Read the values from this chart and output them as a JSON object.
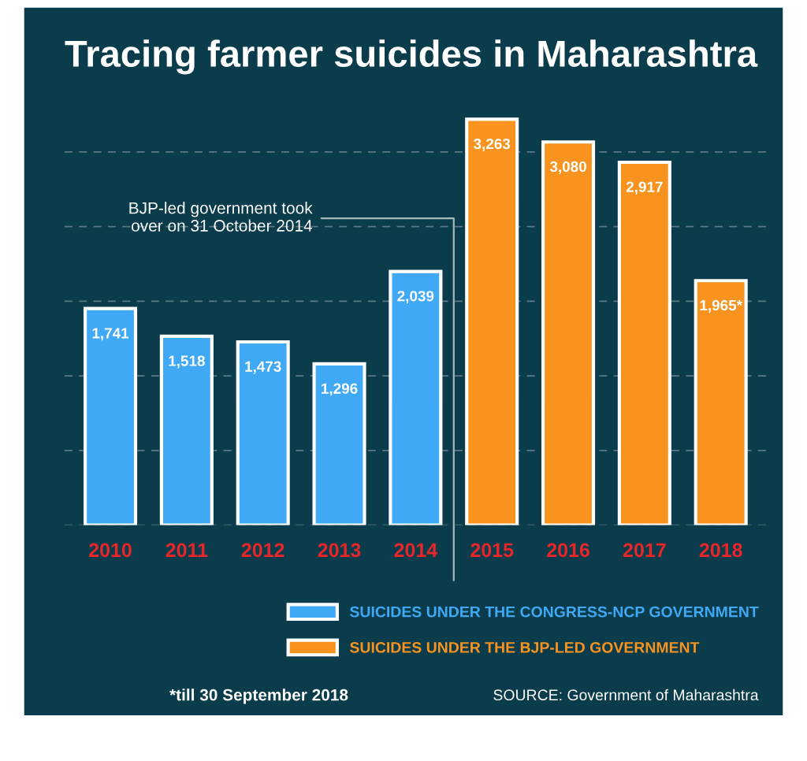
{
  "chart_data": {
    "type": "bar",
    "title": "Tracing farmer suicides in Maharashtra",
    "categories": [
      "2010",
      "2011",
      "2012",
      "2013",
      "2014",
      "2015",
      "2016",
      "2017",
      "2018"
    ],
    "series": [
      {
        "name": "SUICIDES UNDER THE CONGRESS-NCP GOVERNMENT",
        "color": "#3fa9f5",
        "values": [
          1741,
          1518,
          1473,
          1296,
          2039,
          null,
          null,
          null,
          null
        ],
        "value_labels": [
          "1,741",
          "1,518",
          "1,473",
          "1,296",
          "2,039",
          null,
          null,
          null,
          null
        ]
      },
      {
        "name": "SUICIDES UNDER THE BJP-LED GOVERNMENT",
        "color": "#f7931e",
        "values": [
          null,
          null,
          null,
          null,
          null,
          3263,
          3080,
          2917,
          1965
        ],
        "value_labels": [
          null,
          null,
          null,
          null,
          null,
          "3,263",
          "3,080",
          "2,917",
          "1,965*"
        ]
      }
    ],
    "ref_lines": [
      {
        "axis": "y",
        "value": 0,
        "color": "#5b7a85",
        "line_style": "dashed"
      },
      {
        "axis": "y",
        "value": 600,
        "color": "#5b7a85",
        "line_style": "dashed"
      },
      {
        "axis": "y",
        "value": 1200,
        "color": "#5b7a85",
        "line_style": "dashed"
      },
      {
        "axis": "y",
        "value": 1800,
        "color": "#5b7a85",
        "line_style": "dashed"
      },
      {
        "axis": "y",
        "value": 2400,
        "color": "#5b7a85",
        "line_style": "dashed"
      },
      {
        "axis": "y",
        "value": 3000,
        "color": "#5b7a85",
        "line_style": "dashed"
      }
    ],
    "tick_labels": "x",
    "legend": "bottom",
    "annotations": [
      "BJP-led government took\nover on 31 October 2014",
      "*till 30 September 2018",
      "SOURCE: Government of Maharashtra"
    ]
  }
}
